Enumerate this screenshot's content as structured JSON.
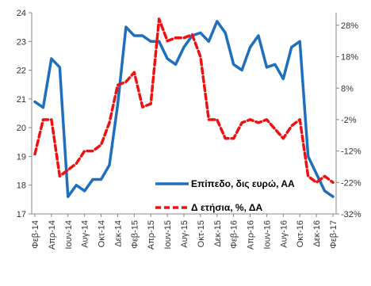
{
  "chart_data": {
    "type": "line",
    "categories": [
      "Φεβ-14",
      "Μαρ-14",
      "Απρ-14",
      "Μαϊ-14",
      "Ιουν-14",
      "Ιουλ-14",
      "Αυγ-14",
      "Σεπ-14",
      "Οκτ-14",
      "Νοε-14",
      "Δεκ-14",
      "Ιαν-15",
      "Φεβ-15",
      "Μαρ-15",
      "Απρ-15",
      "Μαϊ-15",
      "Ιουν-15",
      "Ιουλ-15",
      "Αυγ-15",
      "Σεπ-15",
      "Οκτ-15",
      "Νοε-15",
      "Δεκ-15",
      "Ιαν-16",
      "Φεβ-16",
      "Μαρ-16",
      "Απρ-16",
      "Μαϊ-16",
      "Ιουν-16",
      "Ιουλ-16",
      "Αυγ-16",
      "Σεπ-16",
      "Οκτ-16",
      "Νοε-16",
      "Δεκ-16",
      "Ιαν-17",
      "Φεβ-17"
    ],
    "x_tick_labels": [
      "Φεβ-14",
      "Απρ-14",
      "Ιουν-14",
      "Αυγ-14",
      "Οκτ-14",
      "Δεκ-14",
      "Φεβ-15",
      "Απρ-15",
      "Ιουν-15",
      "Αυγ-15",
      "Οκτ-15",
      "Δεκ-15",
      "Φεβ-16",
      "Απρ-16",
      "Ιουν-16",
      "Αυγ-16",
      "Οκτ-16",
      "Δεκ-16",
      "Φεβ-17"
    ],
    "left_axis": {
      "range": [
        17,
        24
      ],
      "ticks": [
        "17",
        "18",
        "19",
        "20",
        "21",
        "22",
        "23",
        "24"
      ]
    },
    "right_axis": {
      "range": [
        -32,
        32
      ],
      "ticks": [
        "-32%",
        "-22%",
        "-12%",
        "-2%",
        "8%",
        "18%",
        "28%"
      ]
    },
    "series": [
      {
        "name": "Επίπεδο, δις ευρώ, ΑΑ",
        "axis": "left",
        "color": "#1f6fbf",
        "style": "solid",
        "values": [
          20.9,
          20.7,
          22.4,
          22.1,
          17.6,
          18.0,
          17.8,
          18.2,
          18.2,
          18.7,
          20.8,
          23.5,
          23.2,
          23.2,
          23.0,
          23.0,
          22.4,
          22.2,
          22.8,
          23.2,
          23.3,
          23.0,
          23.7,
          23.3,
          22.2,
          22.0,
          22.8,
          23.2,
          22.1,
          22.2,
          21.7,
          22.8,
          23.0,
          19.0,
          18.4,
          17.8,
          17.6
        ]
      },
      {
        "name": "Δ ετήσια, %, ΔΑ",
        "axis": "right",
        "color": "#ee1111",
        "style": "dashed",
        "values": [
          -13,
          -2,
          -2,
          -20,
          -18,
          -16,
          -12,
          -12,
          -10,
          -3,
          9,
          10,
          13,
          2,
          3,
          30,
          23,
          24,
          24,
          25,
          18,
          -2,
          -2,
          -8,
          -8,
          -3,
          -2,
          -3,
          -2,
          -5,
          -8,
          -4,
          -2,
          -20,
          -22,
          -20,
          -22
        ]
      }
    ],
    "legend_position": "bottom-right"
  },
  "legend": {
    "level_label": "Επίπεδο, δις ευρώ, ΑΑ",
    "change_label": "Δ ετήσια, %, ΔΑ"
  },
  "colors": {
    "level": "#1f6fbf",
    "change": "#ee1111",
    "axis": "#888888"
  }
}
